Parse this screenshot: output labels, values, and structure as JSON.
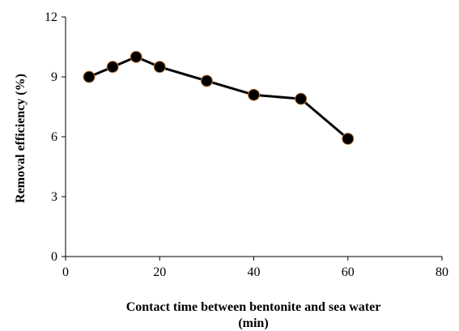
{
  "chart_data": {
    "type": "line",
    "title": "",
    "xlabel_line1": "Contact time between bentonite and sea water",
    "xlabel_line2": "(min)",
    "ylabel": "Removal efficiency (%)",
    "xlim": [
      0,
      80
    ],
    "ylim": [
      0,
      12
    ],
    "xticks": [
      0,
      20,
      40,
      60,
      80
    ],
    "yticks": [
      0,
      3,
      6,
      9,
      12
    ],
    "grid": false,
    "legend": "none",
    "series": [
      {
        "color": "#000000",
        "marker_edge_color": "#c07a3a",
        "x": [
          5,
          10,
          15,
          20,
          30,
          40,
          50,
          60
        ],
        "y": [
          9.0,
          9.5,
          10.0,
          9.5,
          8.8,
          8.1,
          7.9,
          5.9
        ]
      }
    ]
  }
}
